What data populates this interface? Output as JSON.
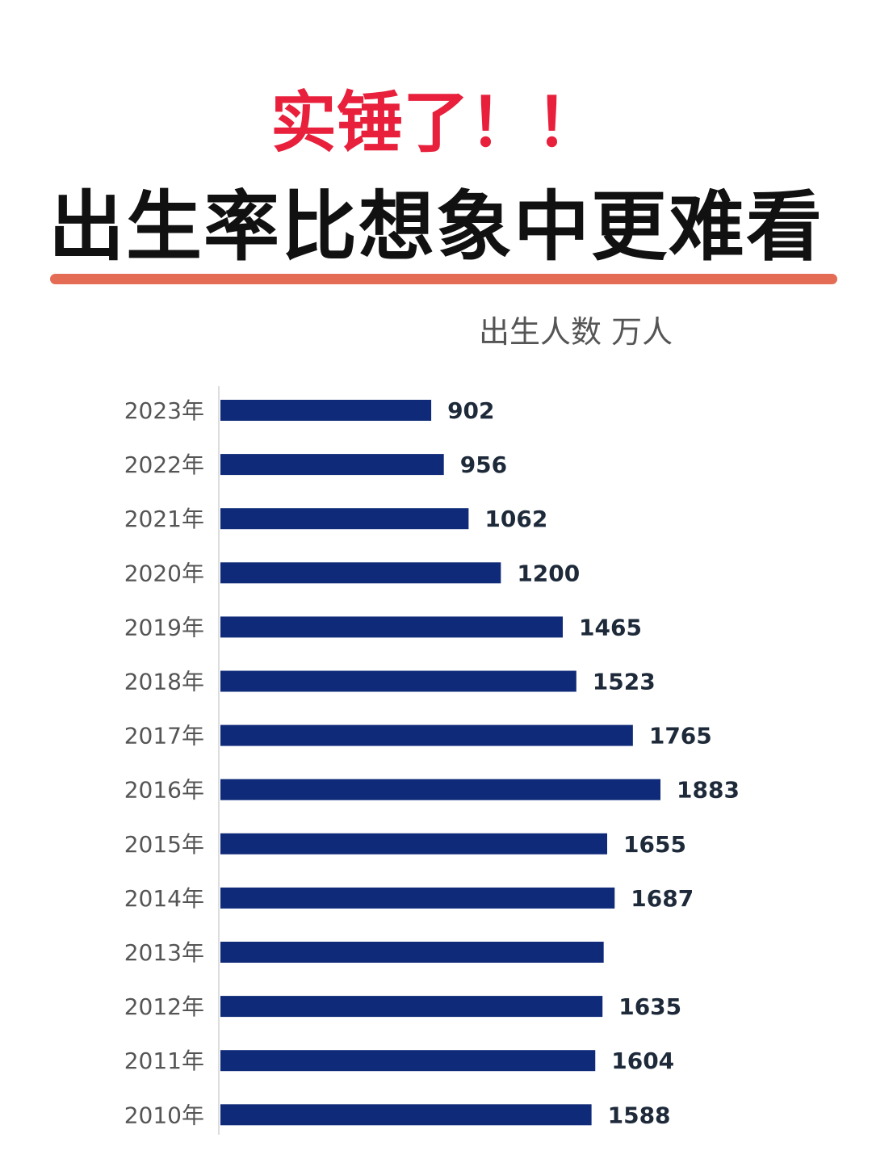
{
  "header": {
    "title_line1": "实锤了！！",
    "title_line2": "出生率比想象中更难看"
  },
  "chart_data": {
    "type": "bar",
    "orientation": "horizontal",
    "unit_label": "出生人数 万人",
    "categories": [
      "2023年",
      "2022年",
      "2021年",
      "2020年",
      "2019年",
      "2018年",
      "2017年",
      "2016年",
      "2015年",
      "2014年",
      "2013年",
      "2012年",
      "2011年",
      "2010年"
    ],
    "values": [
      902,
      956,
      1062,
      1200,
      1465,
      1523,
      1765,
      1883,
      1655,
      1687,
      1640,
      1635,
      1604,
      1588
    ],
    "data_labels": [
      "902",
      "956",
      "1062",
      "1200",
      "1465",
      "1523",
      "1765",
      "1883",
      "1655",
      "1687",
      "",
      "1635",
      "1604",
      "1588"
    ],
    "bar_color": "#0f2a78",
    "grid": false
  }
}
